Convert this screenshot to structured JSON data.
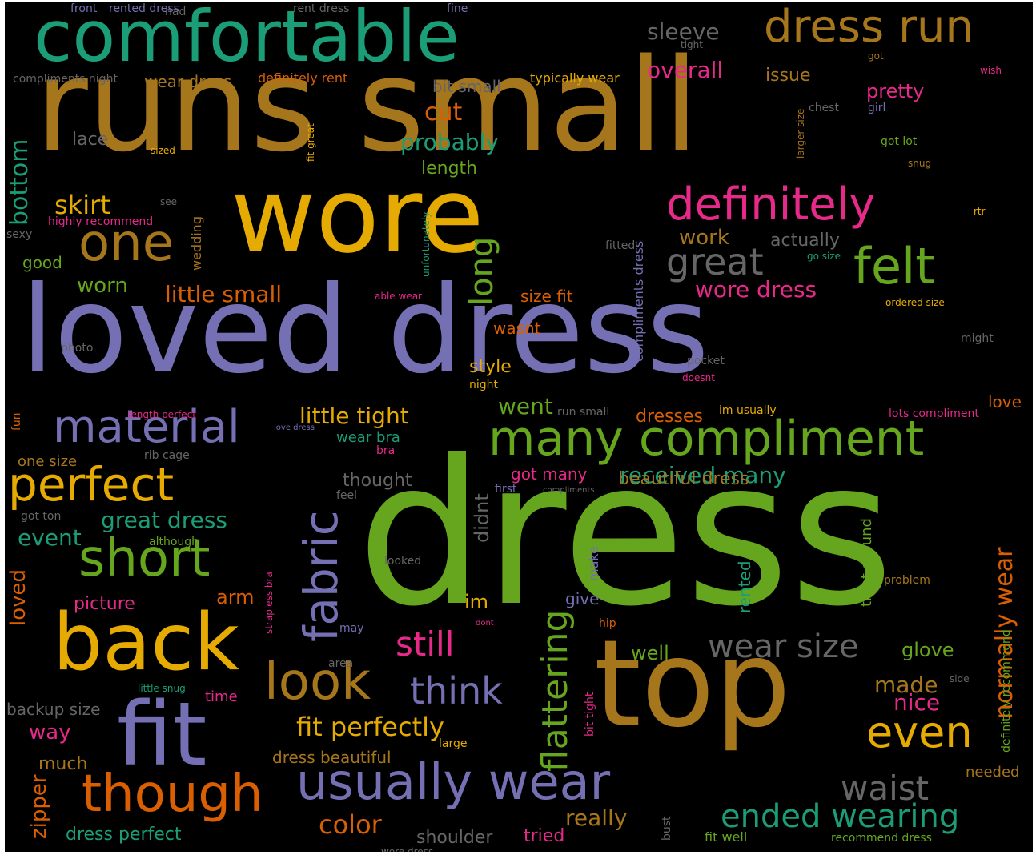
{
  "wordcloud": {
    "palette": {
      "c0": "#1b9e77",
      "c1": "#d95f02",
      "c2": "#7570b3",
      "c3": "#e7298a",
      "c4": "#66a61e",
      "c5": "#e6ab02",
      "c6": "#a6761d",
      "c7": "#666666"
    },
    "background": "#000000",
    "words": [
      "dress",
      "runs small",
      "loved dress",
      "wore",
      "comfortable",
      "top",
      "fit",
      "back",
      "many compliment",
      "dress run",
      "though",
      "usually wear",
      "definitely",
      "felt",
      "short",
      "one",
      "fabric",
      "look",
      "perfect",
      "material",
      "flattering",
      "great",
      "think",
      "even",
      "ended wearing",
      "wear size",
      "long",
      "still",
      "fit perfectly",
      "waist",
      "skirt",
      "normally wear",
      "little small",
      "little tight",
      "color",
      "really",
      "received many",
      "great dress",
      "wore dress",
      "work",
      "worn",
      "cut",
      "probably",
      "overall",
      "pretty",
      "issue",
      "sleeve",
      "made",
      "nice",
      "bottom",
      "event",
      "loved",
      "way",
      "zipper",
      "arm",
      "im",
      "didnt",
      "well",
      "glove",
      "style",
      "went",
      "length",
      "lace",
      "actually",
      "got many",
      "beautiful dress",
      "thought",
      "dresses",
      "dress beautiful",
      "tried",
      "shoulder",
      "dress perfect",
      "backup size",
      "much",
      "picture",
      "wear dress",
      "definitely rent",
      "bit small",
      "typically wear",
      "compliments night",
      "rented dress",
      "rent dress",
      "front",
      "fine",
      "tight",
      "got",
      "wish",
      "girl",
      "chest",
      "larger size",
      "got lot",
      "rtr",
      "compliments dress",
      "unfortunately",
      "fitted",
      "go size",
      "ordered size",
      "might",
      "love",
      "lots compliment",
      "im usually",
      "run small",
      "wasnt",
      "size fit",
      "able wear",
      "photo",
      "pocket",
      "night",
      "one size",
      "rib cage",
      "wear bra",
      "bra",
      "first",
      "feel",
      "got ton",
      "although",
      "strapless bra",
      "looked",
      "make",
      "give",
      "rented",
      "tight around",
      "problem",
      "hip",
      "may",
      "area",
      "time",
      "little snug",
      "side",
      "bit tight",
      "large",
      "needed",
      "bust",
      "fit well",
      "recommend dress",
      "definitely recommend",
      "highly recommend",
      "sexy",
      "wedding",
      "good",
      "sized",
      "see",
      "fit great",
      "snug",
      "fun",
      "length perfect",
      "love dress",
      "dont",
      "compliments",
      "had",
      "wore dress",
      "doesnt"
    ]
  }
}
